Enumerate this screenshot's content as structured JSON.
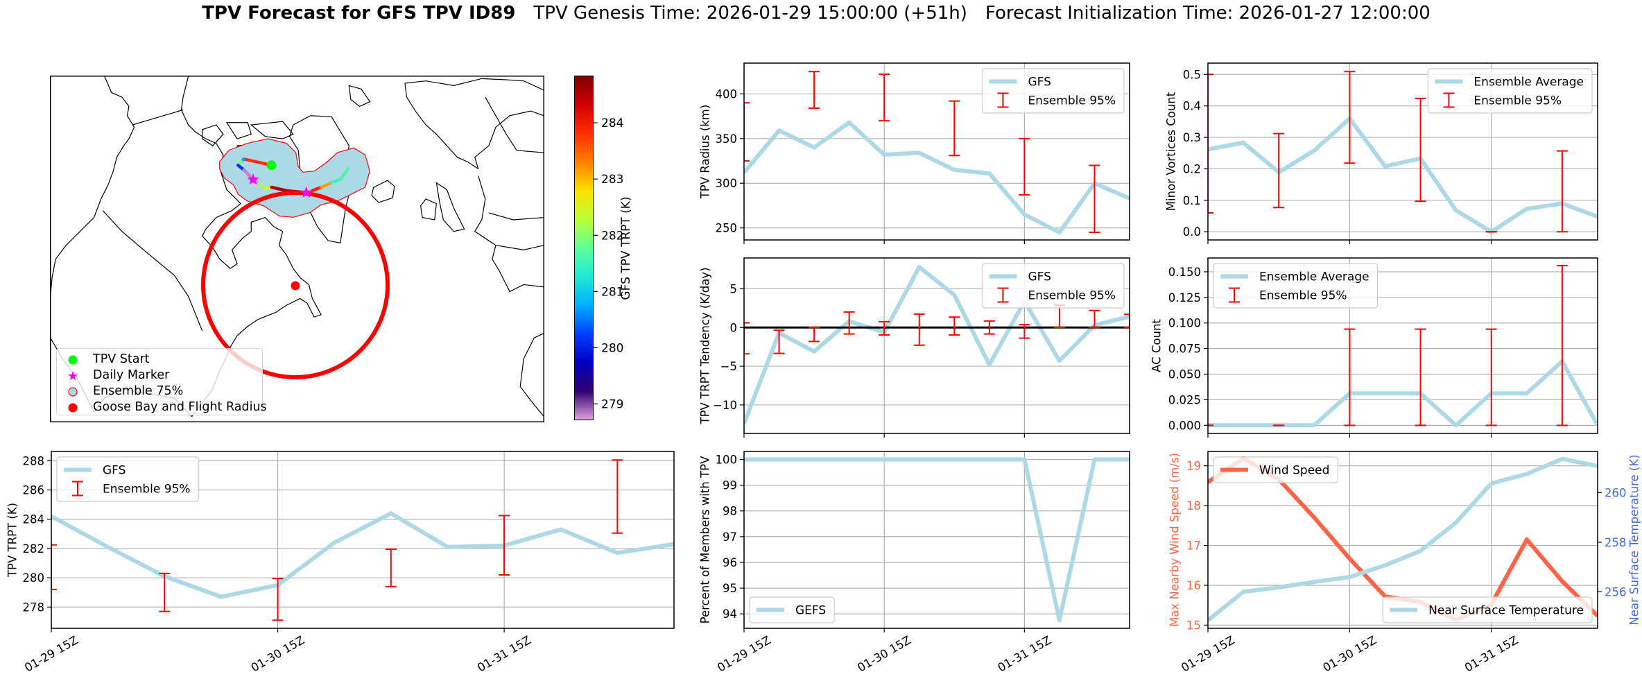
{
  "title": {
    "main": "TPV Forecast for GFS TPV ID89",
    "genesis": "TPV Genesis Time: 2026-01-29 15:00:00 (+51h)",
    "init": "Forecast Initialization Time: 2026-01-27 12:00:00"
  },
  "map": {
    "legend": [
      {
        "label": "TPV Start",
        "marker": "circle",
        "color": "#00ff00"
      },
      {
        "label": "Daily Marker",
        "marker": "star",
        "color": "#ff00ff"
      },
      {
        "label": "Ensemble 75%",
        "marker": "circle-outlined",
        "color": "#add8e6",
        "edge": "#ff0000"
      },
      {
        "label": "Goose Bay and Flight Radius",
        "marker": "circle",
        "color": "#ff0000"
      }
    ],
    "ensemble_fill": "#add8e6",
    "ensemble_edge": "#ff0000",
    "flight_radius_color": "#ff0000",
    "track_colors": [
      "#ff3000",
      "#1e90ff",
      "#7cff79",
      "#0030ff",
      "#c080e0",
      "#c080e0",
      "#d090e0",
      "#a0ff50",
      "#e0f020",
      "#b00000",
      "#c00000",
      "#80ff80",
      "#ff2000",
      "#ffa000",
      "#40f0c0",
      "#50f0b0"
    ],
    "colorbar": {
      "label": "GFS TPV TRPT (K)",
      "range": [
        278.71,
        284.84
      ],
      "ticks": [
        279,
        280,
        281,
        282,
        283,
        284
      ],
      "tick_labels": [
        "279",
        "280",
        "281",
        "282",
        "283",
        "284"
      ],
      "colors": [
        "#800000",
        "#d00000",
        "#ff3000",
        "#ff8000",
        "#ffe000",
        "#b8ff38",
        "#60ff98",
        "#20e8d8",
        "#00b0ff",
        "#0040ff",
        "#0000c0",
        "#300070",
        "#dda0dd"
      ]
    }
  },
  "chart_data": [
    {
      "id": "trpt",
      "type": "line",
      "ylabel": "TPV TRPT (K)",
      "x": [
        "2026-01-29T15:00Z",
        "2026-01-29T21:00Z",
        "2026-01-30T03:00Z",
        "2026-01-30T09:00Z",
        "2026-01-30T15:00Z",
        "2026-01-30T21:00Z",
        "2026-01-31T03:00Z",
        "2026-01-31T09:00Z",
        "2026-01-31T15:00Z",
        "2026-01-31T21:00Z",
        "2026-02-01T03:00Z",
        "2026-02-01T09:00Z"
      ],
      "xlim": [
        "2026-01-29T15:00Z",
        "2026-02-01T09:00Z"
      ],
      "xticks": {
        "x": [
          "2026-01-29T15:00Z",
          "2026-01-30T15:00Z",
          "2026-01-31T15:00Z"
        ],
        "labels": [
          "01-29 15Z",
          "01-30 15Z",
          "01-31 15Z"
        ]
      },
      "ylim": [
        276.55,
        288.63
      ],
      "yticks": [
        278,
        280,
        282,
        284,
        286,
        288
      ],
      "ytick_labels": [
        "278",
        "280",
        "282",
        "284",
        "286",
        "288"
      ],
      "grid": true,
      "series": [
        {
          "name": "GFS",
          "color": "#add8e6",
          "values": [
            284.2,
            282.1,
            280.1,
            278.7,
            279.5,
            282.4,
            284.4,
            282.1,
            282.2,
            283.3,
            281.7,
            282.3
          ]
        }
      ],
      "errorbars": {
        "name": "Ensemble 95%",
        "color": "#ff0000",
        "x": [
          "2026-01-29T15:00Z",
          "2026-01-30T03:00Z",
          "2026-01-30T15:00Z",
          "2026-01-31T03:00Z",
          "2026-01-31T15:00Z",
          "2026-02-01T03:00Z"
        ],
        "low": [
          279.2,
          277.7,
          277.1,
          279.4,
          280.2,
          283.05
        ],
        "high": [
          282.25,
          280.3,
          279.95,
          281.95,
          284.25,
          288.05
        ]
      },
      "legends": [
        {
          "loc": "upper left",
          "entries": [
            "GFS",
            "Ensemble 95%"
          ]
        }
      ]
    },
    {
      "id": "radius",
      "type": "line",
      "ylabel": "TPV Radius (km)",
      "x": [
        "2026-01-29T15:00Z",
        "2026-01-29T21:00Z",
        "2026-01-30T03:00Z",
        "2026-01-30T09:00Z",
        "2026-01-30T15:00Z",
        "2026-01-30T21:00Z",
        "2026-01-31T03:00Z",
        "2026-01-31T09:00Z",
        "2026-01-31T15:00Z",
        "2026-01-31T21:00Z",
        "2026-02-01T03:00Z",
        "2026-02-01T09:00Z"
      ],
      "xlim": [
        "2026-01-29T15:00Z",
        "2026-02-01T09:00Z"
      ],
      "xticks": {
        "x": [
          "2026-01-29T15:00Z",
          "2026-01-30T15:00Z",
          "2026-01-31T15:00Z"
        ],
        "labels": [
          "01-29 15Z",
          "01-30 15Z",
          "01-31 15Z"
        ]
      },
      "ylim": [
        236.5,
        434.5
      ],
      "yticks": [
        250,
        300,
        350,
        400
      ],
      "ytick_labels": [
        "250",
        "300",
        "350",
        "400"
      ],
      "grid": true,
      "series": [
        {
          "name": "GFS",
          "color": "#add8e6",
          "values": [
            312,
            359,
            340,
            368,
            332,
            334,
            315,
            311,
            265,
            245,
            300,
            283
          ]
        }
      ],
      "errorbars": {
        "name": "Ensemble 95%",
        "color": "#ff0000",
        "x": [
          "2026-01-29T15:00Z",
          "2026-01-30T03:00Z",
          "2026-01-30T15:00Z",
          "2026-01-31T03:00Z",
          "2026-01-31T15:00Z",
          "2026-02-01T03:00Z"
        ],
        "low": [
          325,
          384,
          370,
          331,
          287,
          245
        ],
        "high": [
          390,
          425,
          422,
          392,
          350,
          320
        ]
      },
      "legends": [
        {
          "loc": "upper right",
          "entries": [
            "GFS",
            "Ensemble 95%"
          ]
        }
      ]
    },
    {
      "id": "tendency",
      "type": "line",
      "ylabel": "TPV TRPT Tendency (K/day)",
      "x": [
        "2026-01-29T15:00Z",
        "2026-01-29T21:00Z",
        "2026-01-30T03:00Z",
        "2026-01-30T09:00Z",
        "2026-01-30T15:00Z",
        "2026-01-30T21:00Z",
        "2026-01-31T03:00Z",
        "2026-01-31T09:00Z",
        "2026-01-31T15:00Z",
        "2026-01-31T21:00Z",
        "2026-02-01T03:00Z",
        "2026-02-01T09:00Z"
      ],
      "xlim": [
        "2026-01-29T15:00Z",
        "2026-02-01T09:00Z"
      ],
      "xticks": {
        "x": [
          "2026-01-29T15:00Z",
          "2026-01-30T15:00Z",
          "2026-01-31T15:00Z"
        ],
        "labels": [
          "01-29 15Z",
          "01-30 15Z",
          "01-31 15Z"
        ]
      },
      "ylim": [
        -13.68,
        8.98
      ],
      "yticks": [
        -10,
        -5,
        0,
        5
      ],
      "ytick_labels": [
        "−10",
        "−5",
        "0",
        "5"
      ],
      "zero_line": true,
      "grid": true,
      "series": [
        {
          "name": "GFS",
          "color": "#add8e6",
          "values": [
            -12.4,
            -0.7,
            -3.1,
            0.8,
            -0.6,
            7.8,
            4.2,
            -4.8,
            3.4,
            -4.3,
            0.3,
            1.4
          ]
        }
      ],
      "errorbars": {
        "name": "Ensemble 95%",
        "color": "#ff0000",
        "x": [
          "2026-01-29T15:00Z",
          "2026-01-29T21:00Z",
          "2026-01-30T03:00Z",
          "2026-01-30T09:00Z",
          "2026-01-30T15:00Z",
          "2026-01-30T21:00Z",
          "2026-01-31T03:00Z",
          "2026-01-31T09:00Z",
          "2026-01-31T15:00Z",
          "2026-01-31T21:00Z",
          "2026-02-01T03:00Z",
          "2026-02-01T09:00Z"
        ],
        "low": [
          -3.4,
          -3.35,
          -1.8,
          -0.84,
          -0.96,
          -2.28,
          -0.96,
          -0.84,
          -1.38,
          0,
          0,
          0
        ],
        "high": [
          0.6,
          -0.36,
          0,
          2.0,
          0.75,
          1.74,
          1.35,
          0.84,
          0.36,
          2.9,
          2.2,
          1.7
        ]
      },
      "legends": [
        {
          "loc": "upper right",
          "entries": [
            "GFS",
            "Ensemble 95%"
          ]
        }
      ]
    },
    {
      "id": "percent",
      "type": "line",
      "ylabel": "Percent of Members with TPV",
      "x": [
        "2026-01-29T15:00Z",
        "2026-01-29T21:00Z",
        "2026-01-30T03:00Z",
        "2026-01-30T09:00Z",
        "2026-01-30T15:00Z",
        "2026-01-30T21:00Z",
        "2026-01-31T03:00Z",
        "2026-01-31T09:00Z",
        "2026-01-31T15:00Z",
        "2026-01-31T21:00Z",
        "2026-02-01T03:00Z",
        "2026-02-01T09:00Z"
      ],
      "xlim": [
        "2026-01-29T15:00Z",
        "2026-02-01T09:00Z"
      ],
      "xticks": {
        "x": [
          "2026-01-29T15:00Z",
          "2026-01-30T15:00Z",
          "2026-01-31T15:00Z"
        ],
        "labels": [
          "01-29 15Z",
          "01-30 15Z",
          "01-31 15Z"
        ]
      },
      "ylim": [
        93.44,
        100.31
      ],
      "yticks": [
        94,
        95,
        96,
        97,
        98,
        99,
        100
      ],
      "ytick_labels": [
        "94",
        "95",
        "96",
        "97",
        "98",
        "99",
        "100"
      ],
      "grid": true,
      "series": [
        {
          "name": "GEFS",
          "color": "#add8e6",
          "values": [
            100,
            100,
            100,
            100,
            100,
            100,
            100,
            100,
            100,
            93.75,
            100,
            100
          ]
        }
      ],
      "legends": [
        {
          "loc": "lower left",
          "entries": [
            "GEFS"
          ]
        }
      ]
    },
    {
      "id": "minor",
      "type": "line",
      "ylabel": "Minor Vortices Count",
      "x": [
        "2026-01-29T15:00Z",
        "2026-01-29T21:00Z",
        "2026-01-30T03:00Z",
        "2026-01-30T09:00Z",
        "2026-01-30T15:00Z",
        "2026-01-30T21:00Z",
        "2026-01-31T03:00Z",
        "2026-01-31T09:00Z",
        "2026-01-31T15:00Z",
        "2026-01-31T21:00Z",
        "2026-02-01T03:00Z",
        "2026-02-01T09:00Z"
      ],
      "xlim": [
        "2026-01-29T15:00Z",
        "2026-02-01T09:00Z"
      ],
      "xticks": {
        "x": [
          "2026-01-29T15:00Z",
          "2026-01-30T15:00Z",
          "2026-01-31T15:00Z"
        ],
        "labels": [
          "01-29 15Z",
          "01-30 15Z",
          "01-31 15Z"
        ]
      },
      "ylim": [
        -0.026,
        0.536
      ],
      "yticks": [
        0,
        0.1,
        0.2,
        0.3,
        0.4,
        0.5
      ],
      "ytick_labels": [
        "0.0",
        "0.1",
        "0.2",
        "0.3",
        "0.4",
        "0.5"
      ],
      "grid": true,
      "series": [
        {
          "name": "Ensemble Average",
          "color": "#add8e6",
          "values": [
            0.262,
            0.283,
            0.189,
            0.258,
            0.36,
            0.208,
            0.233,
            0.068,
            0,
            0.073,
            0.09,
            0.048
          ]
        }
      ],
      "errorbars": {
        "name": "Ensemble 95%",
        "color": "#ff0000",
        "x": [
          "2026-01-29T15:00Z",
          "2026-01-30T03:00Z",
          "2026-01-30T15:00Z",
          "2026-01-31T03:00Z",
          "2026-01-31T15:00Z",
          "2026-02-01T03:00Z"
        ],
        "low": [
          0.06,
          0.077,
          0.218,
          0.097,
          0,
          0
        ],
        "high": [
          0.5,
          0.312,
          0.509,
          0.424,
          0,
          0.257
        ]
      },
      "legends": [
        {
          "loc": "upper right",
          "entries": [
            "Ensemble Average",
            "Ensemble 95%"
          ]
        }
      ]
    },
    {
      "id": "ac",
      "type": "line",
      "ylabel": "AC Count",
      "x": [
        "2026-01-29T15:00Z",
        "2026-01-29T21:00Z",
        "2026-01-30T03:00Z",
        "2026-01-30T09:00Z",
        "2026-01-30T15:00Z",
        "2026-01-30T21:00Z",
        "2026-01-31T03:00Z",
        "2026-01-31T09:00Z",
        "2026-01-31T15:00Z",
        "2026-01-31T21:00Z",
        "2026-02-01T03:00Z",
        "2026-02-01T09:00Z"
      ],
      "xlim": [
        "2026-01-29T15:00Z",
        "2026-02-01T09:00Z"
      ],
      "xticks": {
        "x": [
          "2026-01-29T15:00Z",
          "2026-01-30T15:00Z",
          "2026-01-31T15:00Z"
        ],
        "labels": [
          "01-29 15Z",
          "01-30 15Z",
          "01-31 15Z"
        ]
      },
      "ylim": [
        -0.0079,
        0.1635
      ],
      "yticks": [
        0,
        0.025,
        0.05,
        0.075,
        0.1,
        0.125,
        0.15
      ],
      "ytick_labels": [
        "0.000",
        "0.025",
        "0.050",
        "0.075",
        "0.100",
        "0.125",
        "0.150"
      ],
      "grid": true,
      "series": [
        {
          "name": "Ensemble Average",
          "color": "#add8e6",
          "values": [
            0,
            0,
            0,
            0,
            0.03125,
            0.03125,
            0.03125,
            0,
            0.03125,
            0.03125,
            0.0625,
            0
          ]
        }
      ],
      "errorbars": {
        "name": "Ensemble 95%",
        "color": "#ff0000",
        "x": [
          "2026-01-29T15:00Z",
          "2026-01-30T03:00Z",
          "2026-01-30T15:00Z",
          "2026-01-31T03:00Z",
          "2026-01-31T15:00Z",
          "2026-02-01T03:00Z"
        ],
        "low": [
          0,
          0,
          0,
          0,
          0,
          0
        ],
        "high": [
          0,
          0,
          0.094,
          0.094,
          0.094,
          0.156
        ]
      },
      "legends": [
        {
          "loc": "upper left",
          "entries": [
            "Ensemble Average",
            "Ensemble 95%"
          ]
        }
      ]
    },
    {
      "id": "wind",
      "type": "line",
      "ylabel": "Max Nearby Wind Speed (m/s)",
      "ylabel_color": "#ff6347",
      "ylabel_right": "Near Surface Temperature (K)",
      "ylabel_right_color": "#4169e1",
      "x": [
        "2026-01-29T15:00Z",
        "2026-01-29T21:00Z",
        "2026-01-30T03:00Z",
        "2026-01-30T09:00Z",
        "2026-01-30T15:00Z",
        "2026-01-30T21:00Z",
        "2026-01-31T03:00Z",
        "2026-01-31T09:00Z",
        "2026-01-31T15:00Z",
        "2026-01-31T21:00Z",
        "2026-02-01T03:00Z",
        "2026-02-01T09:00Z"
      ],
      "xlim": [
        "2026-01-29T15:00Z",
        "2026-02-01T09:00Z"
      ],
      "xticks": {
        "x": [
          "2026-01-29T15:00Z",
          "2026-01-30T15:00Z",
          "2026-01-31T15:00Z"
        ],
        "labels": [
          "01-29 15Z",
          "01-30 15Z",
          "01-31 15Z"
        ]
      },
      "ylim": [
        14.92,
        19.36
      ],
      "yticks": [
        15,
        16,
        17,
        18,
        19
      ],
      "ytick_labels": [
        "15",
        "16",
        "17",
        "18",
        "19"
      ],
      "ylim_right": [
        254.53,
        261.66
      ],
      "yticks_right": [
        256,
        258,
        260
      ],
      "ytick_labels_right": [
        "256",
        "258",
        "260"
      ],
      "grid": true,
      "series": [
        {
          "name": "Wind Speed",
          "axis": "left",
          "color": "#ff6347",
          "values": [
            18.59,
            19.19,
            18.66,
            17.7,
            16.67,
            15.72,
            15.58,
            15.13,
            15.52,
            17.15,
            16.1,
            15.23
          ]
        },
        {
          "name": "Near Surface Temperature",
          "axis": "right",
          "color": "#add8e6",
          "values": [
            254.85,
            256.0,
            256.18,
            256.4,
            256.6,
            257.07,
            257.65,
            258.79,
            260.37,
            260.75,
            261.36,
            261.07
          ]
        }
      ],
      "legends": [
        {
          "loc": "upper left",
          "entries": [
            "Wind Speed"
          ]
        },
        {
          "loc": "lower right",
          "entries": [
            "Near Surface Temperature"
          ]
        }
      ]
    }
  ]
}
